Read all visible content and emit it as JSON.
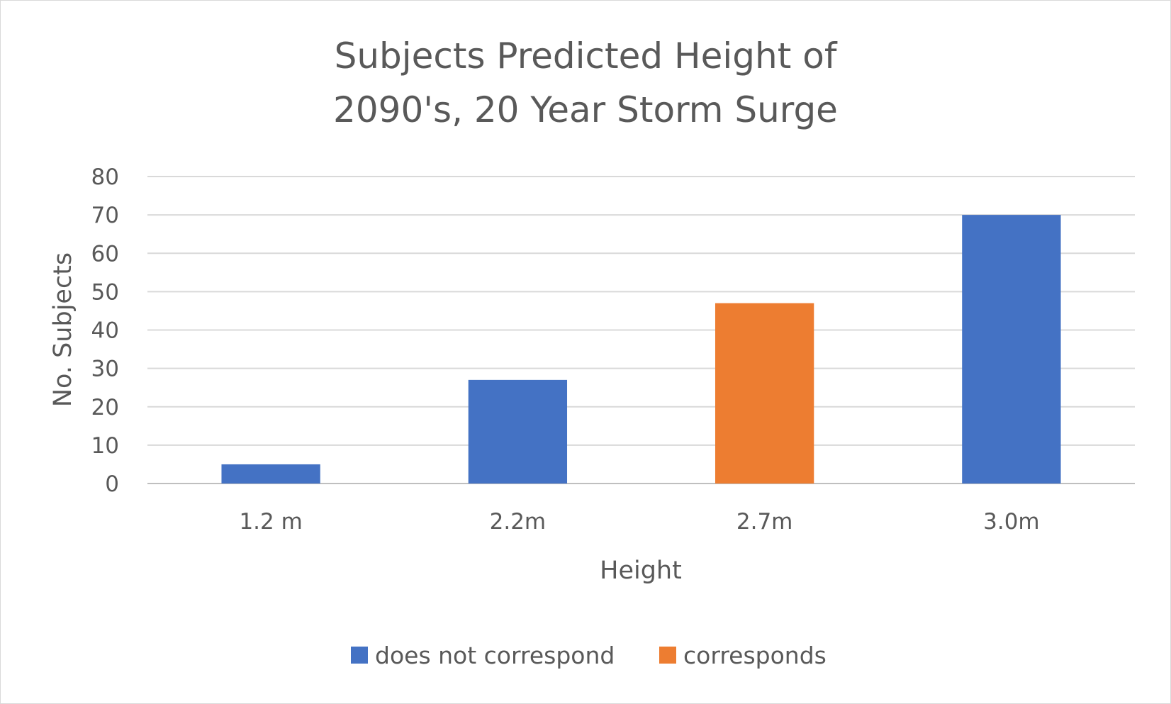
{
  "chart_data": {
    "type": "bar",
    "title": [
      "Subjects Predicted Height of",
      "2090's, 20 Year Storm Surge"
    ],
    "xlabel": "Height",
    "ylabel": "No. Subjects",
    "categories": [
      "1.2 m",
      "2.2m",
      "2.7m",
      "3.0m"
    ],
    "values": [
      5,
      27,
      47,
      70
    ],
    "series_of_bar": [
      0,
      0,
      1,
      0
    ],
    "series": [
      {
        "name": "does not correspond",
        "color": "#4472C4"
      },
      {
        "name": "corresponds",
        "color": "#ED7D31"
      }
    ],
    "ylim": [
      0,
      80
    ],
    "yticks": [
      0,
      10,
      20,
      30,
      40,
      50,
      60,
      70,
      80
    ],
    "grid": true,
    "legend_position": "bottom"
  }
}
